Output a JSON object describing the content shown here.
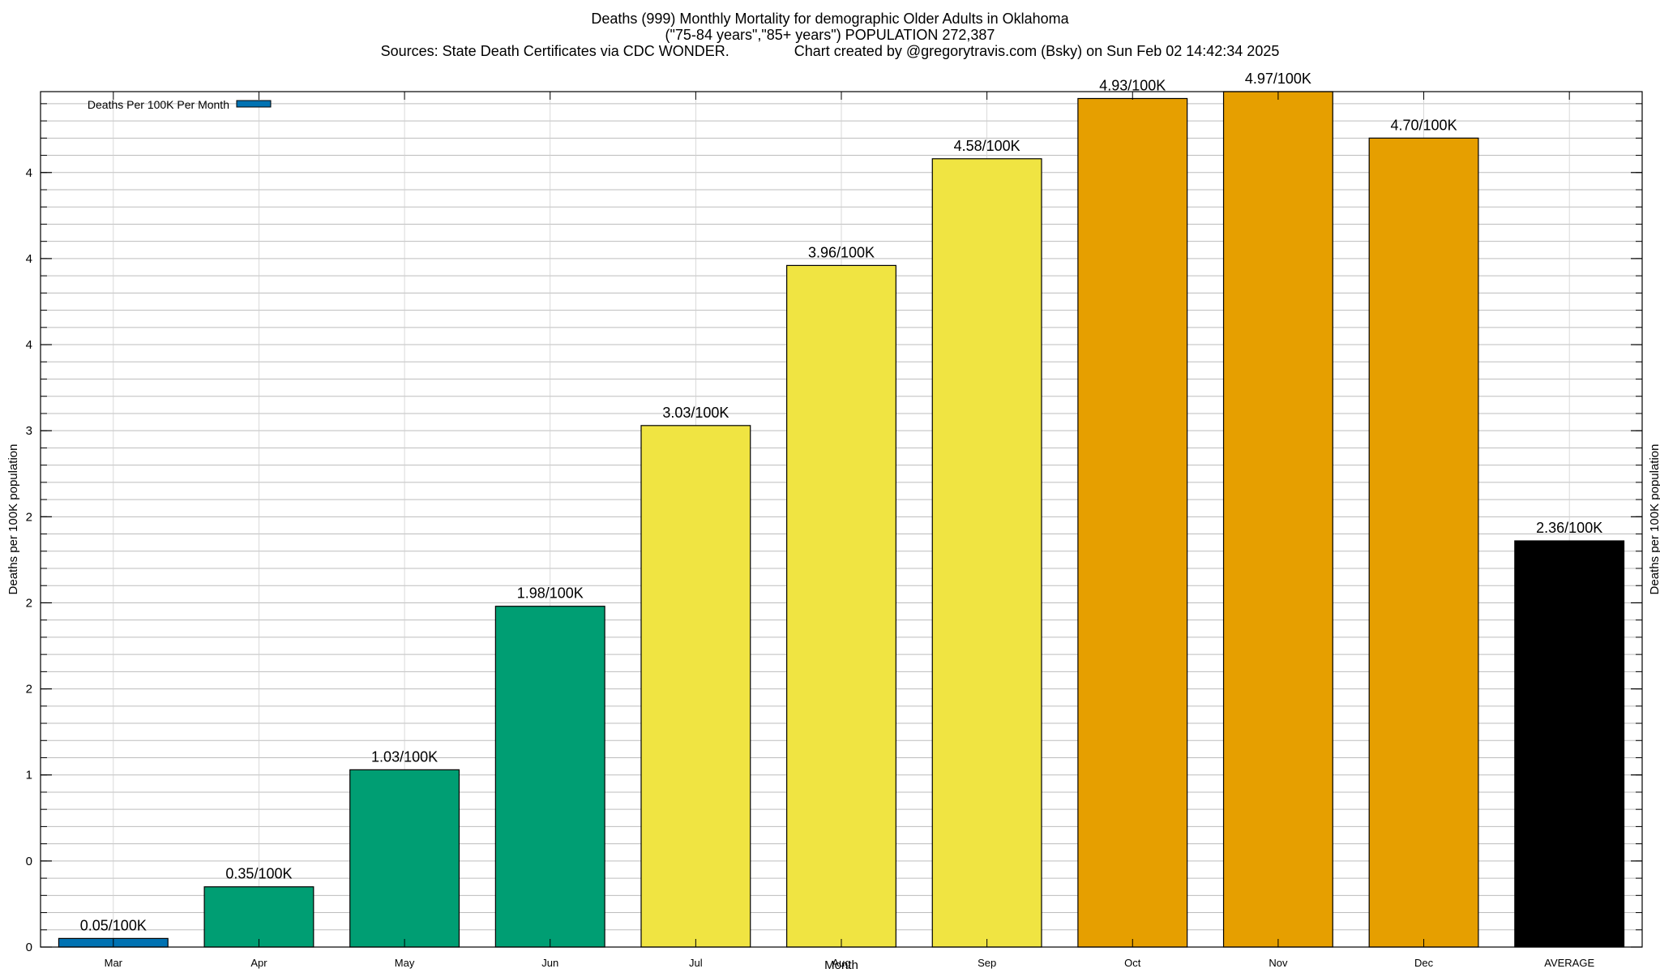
{
  "header": {
    "title_line1": "Deaths (999) Monthly Mortality for demographic Older Adults in Oklahoma",
    "title_line2": "(\"75-84 years\",\"85+ years\") POPULATION 272,387",
    "title_line3": "Sources: State Death Certificates via CDC WONDER.                Chart created by @gregorytravis.com (Bsky) on Sun Feb 02 14:42:34 2025"
  },
  "chart_data": {
    "type": "bar",
    "xlabel": "Month",
    "ylabel": "Deaths per 100K population",
    "y2label": "Deaths per 100K population",
    "ylim": [
      0,
      4.97
    ],
    "grid": true,
    "legend_position": "top-left",
    "categories": [
      "Mar",
      "Apr",
      "May",
      "Jun",
      "Jul",
      "Aug",
      "Sep",
      "Oct",
      "Nov",
      "Dec",
      "AVERAGE"
    ],
    "series": [
      {
        "name": "Deaths Per 100K Per Month",
        "color": "#0072b2",
        "values": [
          0.05,
          0.35,
          1.03,
          1.98,
          3.03,
          3.96,
          4.58,
          4.93,
          4.97,
          4.7,
          2.36
        ],
        "labels": [
          "0.05/100K",
          "0.35/100K",
          "1.03/100K",
          "1.98/100K",
          "3.03/100K",
          "3.96/100K",
          "4.58/100K",
          "4.93/100K",
          "4.97/100K",
          "4.70/100K",
          "2.36/100K"
        ],
        "bar_colors": [
          "#0072b2",
          "#009e73",
          "#009e73",
          "#009e73",
          "#f0e442",
          "#f0e442",
          "#f0e442",
          "#e69f00",
          "#e69f00",
          "#e69f00",
          "#000000"
        ]
      }
    ],
    "ytick_values": [
      0,
      0.5,
      1,
      1.5,
      2,
      2.5,
      3,
      3.5,
      4,
      4.5
    ],
    "ytick_labels": [
      "0",
      "0",
      "1",
      "2",
      "2",
      "2",
      "3",
      "4",
      "4",
      "4"
    ]
  }
}
